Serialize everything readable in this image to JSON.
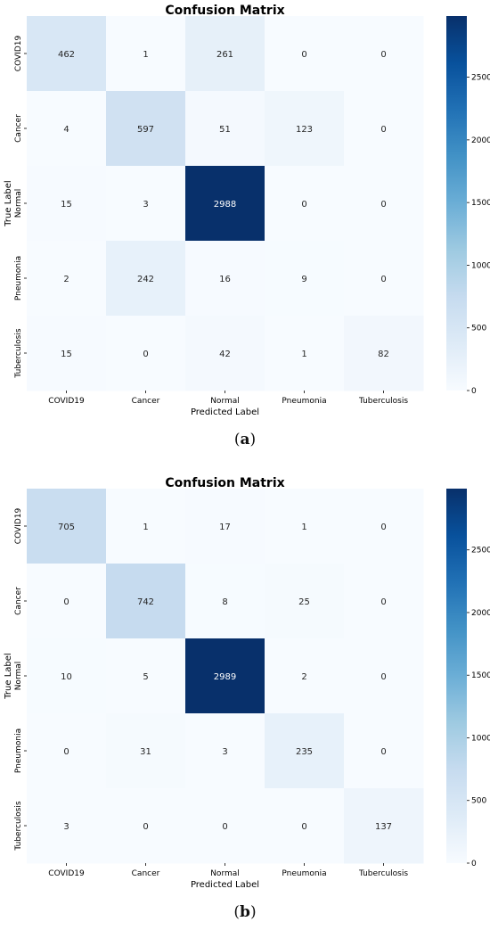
{
  "chart_data": [
    {
      "type": "heatmap",
      "title": "Confusion Matrix",
      "xlabel": "Predicted Label",
      "ylabel": "True Label",
      "x_categories": [
        "COVID19",
        "Cancer",
        "Normal",
        "Pneumonia",
        "Tuberculosis"
      ],
      "y_categories": [
        "COVID19",
        "Cancer",
        "Normal",
        "Pneumonia",
        "Tuberculosis"
      ],
      "values": [
        [
          462,
          1,
          261,
          0,
          0
        ],
        [
          4,
          597,
          51,
          123,
          0
        ],
        [
          15,
          3,
          2988,
          0,
          0
        ],
        [
          2,
          242,
          16,
          9,
          0
        ],
        [
          15,
          0,
          42,
          1,
          82
        ]
      ],
      "colorbar": {
        "ticks": [
          0,
          500,
          1000,
          1500,
          2000,
          2500
        ],
        "range": [
          0,
          2988
        ],
        "colormap": "Blues"
      }
    },
    {
      "type": "heatmap",
      "title": "Confusion Matrix",
      "xlabel": "Predicted Label",
      "ylabel": "True Label",
      "x_categories": [
        "COVID19",
        "Cancer",
        "Normal",
        "Pneumonia",
        "Tuberculosis"
      ],
      "y_categories": [
        "COVID19",
        "Cancer",
        "Normal",
        "Pneumonia",
        "Tuberculosis"
      ],
      "values": [
        [
          705,
          1,
          17,
          1,
          0
        ],
        [
          0,
          742,
          8,
          25,
          0
        ],
        [
          10,
          5,
          2989,
          2,
          0
        ],
        [
          0,
          31,
          3,
          235,
          0
        ],
        [
          3,
          0,
          0,
          0,
          137
        ]
      ],
      "colorbar": {
        "ticks": [
          0,
          500,
          1000,
          1500,
          2000,
          2500
        ],
        "range": [
          0,
          2989
        ],
        "colormap": "Blues"
      }
    }
  ],
  "captions": [
    {
      "open": "(",
      "letter": "a",
      "close": ")"
    },
    {
      "open": "(",
      "letter": "b",
      "close": ")"
    }
  ]
}
